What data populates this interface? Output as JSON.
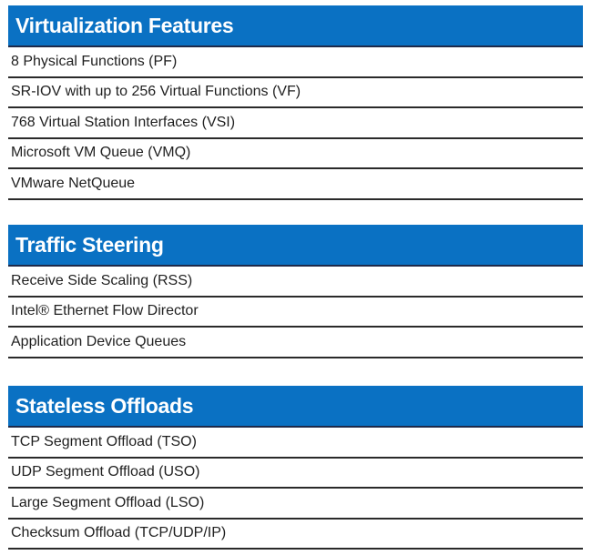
{
  "sections": [
    {
      "title": "Virtualization Features",
      "items": [
        "8 Physical Functions (PF)",
        "SR-IOV with up to 256 Virtual Functions (VF)",
        "768 Virtual Station Interfaces (VSI)",
        "Microsoft VM Queue (VMQ)",
        "VMware NetQueue"
      ]
    },
    {
      "title": "Traffic Steering",
      "items": [
        "Receive Side Scaling (RSS)",
        "Intel® Ethernet Flow Director",
        "Application Device Queues"
      ]
    },
    {
      "title": "Stateless Offloads",
      "items": [
        "TCP Segment Offload (TSO)",
        "UDP Segment Offload (USO)",
        "Large Segment Offload (LSO)",
        "Checksum Offload (TCP/UDP/IP)"
      ]
    }
  ],
  "colors": {
    "header_bg": "#0a71c3",
    "header_text": "#ffffff",
    "row_text": "#1f1f1f",
    "divider": "#2a2a2a"
  }
}
